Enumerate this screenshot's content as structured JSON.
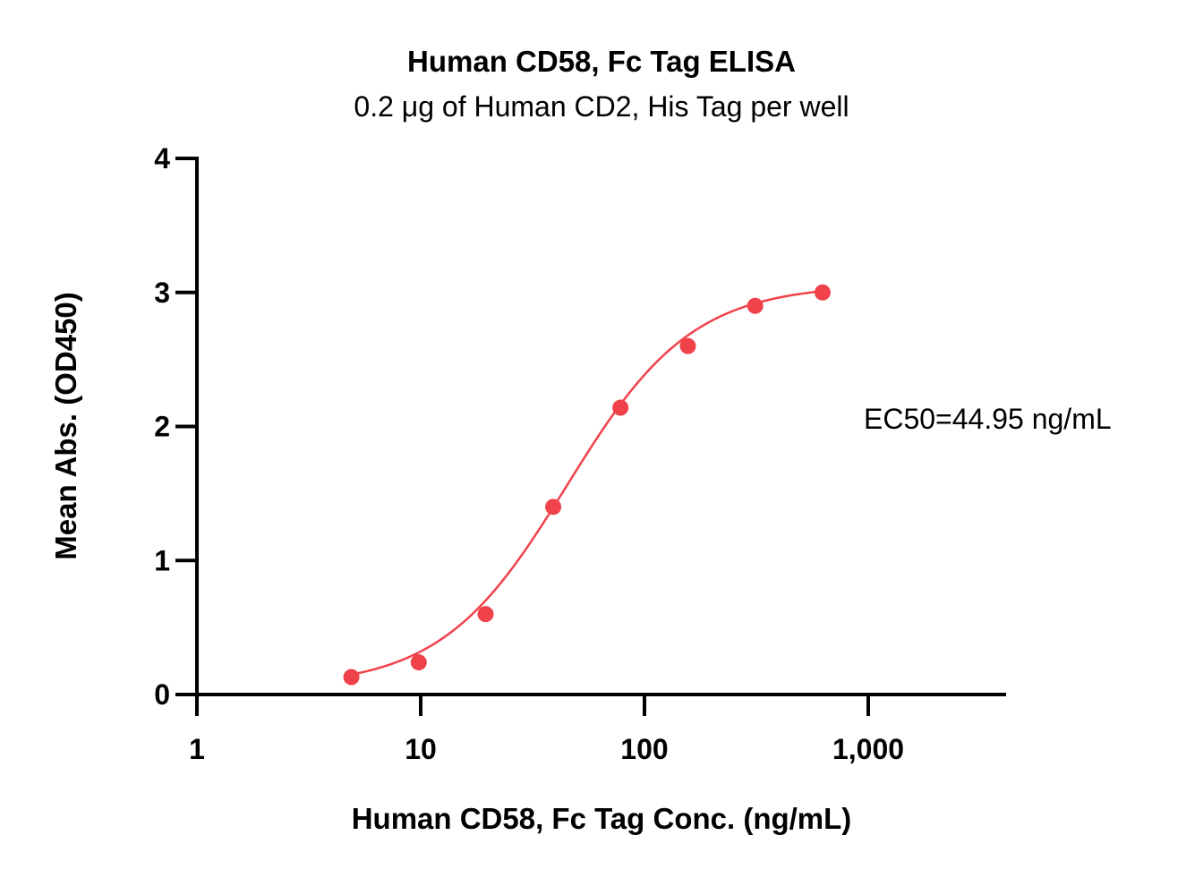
{
  "chart_data": {
    "type": "scatter",
    "title": "Human CD58, Fc Tag ELISA",
    "subtitle": "0.2 μg of Human CD2, His Tag per well",
    "xlabel": "Human CD58, Fc Tag Conc. (ng/mL)",
    "ylabel": "Mean Abs. (OD450)",
    "x_scale": "log",
    "xlim": [
      1,
      4000
    ],
    "ylim": [
      0,
      4
    ],
    "x_ticks": [
      1,
      10,
      100,
      1000
    ],
    "x_tick_labels": [
      "1",
      "10",
      "100",
      "1,000"
    ],
    "y_ticks": [
      0,
      1,
      2,
      3,
      4
    ],
    "y_tick_labels": [
      "0",
      "1",
      "2",
      "3",
      "4"
    ],
    "grid": false,
    "series": [
      {
        "x": [
          4.9,
          9.8,
          19.5,
          39.1,
          78.1,
          156.3,
          312.5,
          625
        ],
        "y": [
          0.13,
          0.24,
          0.6,
          1.4,
          2.14,
          2.6,
          2.9,
          3.0
        ],
        "fit": "4PL",
        "color": "#f0424a"
      }
    ],
    "annotations": [
      {
        "text": "EC50=44.95 ng/mL"
      }
    ]
  }
}
